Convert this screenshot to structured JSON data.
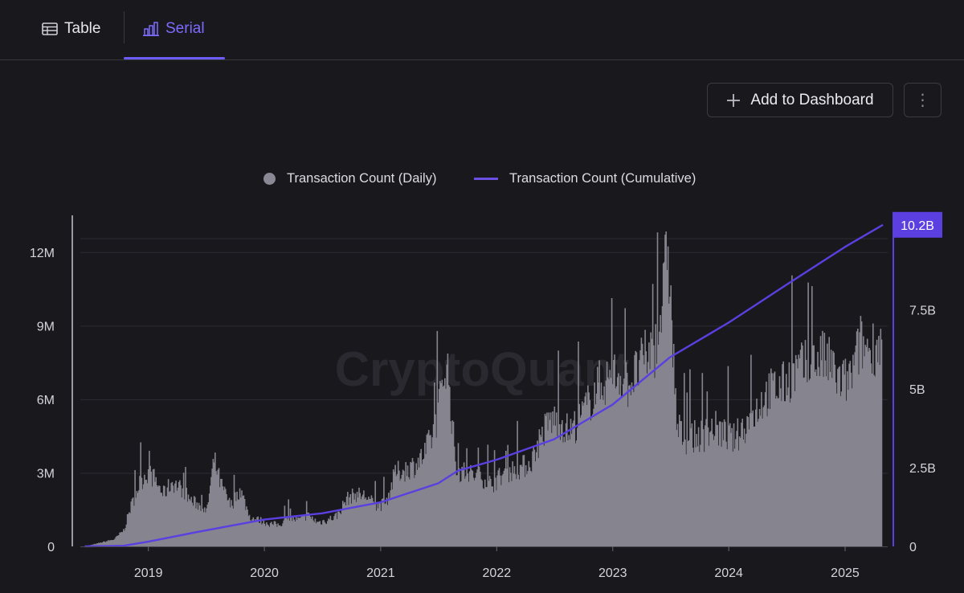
{
  "tabs": [
    {
      "label": "Table",
      "icon": "table-icon",
      "active": false
    },
    {
      "label": "Serial",
      "icon": "bar-chart-icon",
      "active": true
    }
  ],
  "toolbar": {
    "add_dashboard_label": "Add to Dashboard",
    "more_icon": "vertical-dots-icon",
    "more_glyph": "⋮"
  },
  "watermark": "CryptoQuant",
  "colors": {
    "background": "#19181c",
    "accent": "#6e5cf6",
    "daily_bars": "#86858f",
    "cumulative_line": "#5b3fe0",
    "axis_highlight": "#5b3fe0"
  },
  "chart_data": {
    "type": "bar",
    "x_type": "time",
    "x_ticks": [
      "2019",
      "2020",
      "2021",
      "2022",
      "2023",
      "2024",
      "2025"
    ],
    "y_left": {
      "ticks": [
        "0",
        "3M",
        "6M",
        "9M",
        "12M"
      ],
      "range": [
        0,
        13500000
      ]
    },
    "y_right": {
      "ticks": [
        "0",
        "2.5B",
        "5B",
        "7.5B"
      ],
      "range": [
        0,
        10500000000
      ]
    },
    "last_value_label": "10.2B",
    "legend_position": "top-center",
    "grid": true,
    "series": [
      {
        "name": "Transaction Count (Daily)",
        "type": "bar",
        "axis": "left",
        "points": [
          [
            "2018-06-15",
            0
          ],
          [
            "2018-08-01",
            150000
          ],
          [
            "2018-09-15",
            300000
          ],
          [
            "2018-10-15",
            700000
          ],
          [
            "2018-11-01",
            1500000
          ],
          [
            "2018-12-01",
            2600000
          ],
          [
            "2018-12-25",
            3100000
          ],
          [
            "2019-01-15",
            2900000
          ],
          [
            "2019-02-15",
            2200000
          ],
          [
            "2019-03-15",
            2700000
          ],
          [
            "2019-04-15",
            2400000
          ],
          [
            "2019-05-15",
            1900000
          ],
          [
            "2019-06-15",
            1700000
          ],
          [
            "2019-07-01",
            1400000
          ],
          [
            "2019-07-25",
            3600000
          ],
          [
            "2019-08-15",
            2600000
          ],
          [
            "2019-09-15",
            1700000
          ],
          [
            "2019-10-15",
            2400000
          ],
          [
            "2019-11-15",
            1200000
          ],
          [
            "2019-12-15",
            1100000
          ],
          [
            "2020-01-15",
            950000
          ],
          [
            "2020-02-15",
            900000
          ],
          [
            "2020-03-15",
            1200000
          ],
          [
            "2020-04-15",
            1100000
          ],
          [
            "2020-05-15",
            1300000
          ],
          [
            "2020-06-15",
            1000000
          ],
          [
            "2020-07-15",
            1100000
          ],
          [
            "2020-08-15",
            1300000
          ],
          [
            "2020-09-15",
            2000000
          ],
          [
            "2020-10-15",
            2200000
          ],
          [
            "2020-11-15",
            2100000
          ],
          [
            "2020-12-15",
            1700000
          ],
          [
            "2021-01-15",
            1800000
          ],
          [
            "2021-02-15",
            3100000
          ],
          [
            "2021-03-15",
            3200000
          ],
          [
            "2021-04-15",
            3400000
          ],
          [
            "2021-05-15",
            3800000
          ],
          [
            "2021-06-15",
            4800000
          ],
          [
            "2021-07-10",
            6500000
          ],
          [
            "2021-07-25",
            8000000
          ],
          [
            "2021-08-10",
            5500000
          ],
          [
            "2021-08-25",
            3200000
          ],
          [
            "2021-10-15",
            3000000
          ],
          [
            "2021-11-15",
            2900000
          ],
          [
            "2021-12-15",
            2600000
          ],
          [
            "2022-01-15",
            3000000
          ],
          [
            "2022-02-15",
            3200000
          ],
          [
            "2022-03-15",
            3300000
          ],
          [
            "2022-04-15",
            3500000
          ],
          [
            "2022-05-15",
            4500000
          ],
          [
            "2022-06-15",
            5300000
          ],
          [
            "2022-07-15",
            5300000
          ],
          [
            "2022-08-15",
            4800000
          ],
          [
            "2022-09-15",
            5300000
          ],
          [
            "2022-10-15",
            6000000
          ],
          [
            "2022-11-15",
            6800000
          ],
          [
            "2022-12-15",
            7000000
          ],
          [
            "2023-01-15",
            7300000
          ],
          [
            "2023-02-15",
            6800000
          ],
          [
            "2023-03-15",
            7300000
          ],
          [
            "2023-04-15",
            8000000
          ],
          [
            "2023-05-15",
            8400000
          ],
          [
            "2023-06-10",
            10800000
          ],
          [
            "2023-06-20",
            13000000
          ],
          [
            "2023-07-05",
            9000000
          ],
          [
            "2023-07-20",
            5000000
          ],
          [
            "2023-08-15",
            4500000
          ],
          [
            "2023-09-15",
            4600000
          ],
          [
            "2023-10-15",
            4700000
          ],
          [
            "2023-11-15",
            5000000
          ],
          [
            "2023-12-15",
            4700000
          ],
          [
            "2024-01-15",
            4500000
          ],
          [
            "2024-02-15",
            5000000
          ],
          [
            "2024-03-15",
            5500000
          ],
          [
            "2024-04-15",
            6200000
          ],
          [
            "2024-05-15",
            6600000
          ],
          [
            "2024-06-15",
            6700000
          ],
          [
            "2024-07-15",
            7200000
          ],
          [
            "2024-08-15",
            7500000
          ],
          [
            "2024-09-15",
            7600000
          ],
          [
            "2024-10-15",
            8000000
          ],
          [
            "2024-11-15",
            7600000
          ],
          [
            "2024-12-15",
            6900000
          ],
          [
            "2025-01-15",
            7000000
          ],
          [
            "2025-02-15",
            8500000
          ],
          [
            "2025-03-15",
            8300000
          ],
          [
            "2025-04-25",
            8600000
          ]
        ]
      },
      {
        "name": "Transaction Count (Cumulative)",
        "type": "line",
        "axis": "right",
        "points": [
          [
            "2018-06-15",
            0
          ],
          [
            "2018-10-15",
            20000000
          ],
          [
            "2019-01-01",
            150000000
          ],
          [
            "2019-06-01",
            450000000
          ],
          [
            "2020-01-01",
            850000000
          ],
          [
            "2020-07-01",
            1050000000
          ],
          [
            "2021-01-01",
            1400000000
          ],
          [
            "2021-07-01",
            2000000000
          ],
          [
            "2021-09-01",
            2400000000
          ],
          [
            "2022-01-01",
            2750000000
          ],
          [
            "2022-07-01",
            3400000000
          ],
          [
            "2023-01-01",
            4500000000
          ],
          [
            "2023-06-30",
            6000000000
          ],
          [
            "2024-01-01",
            7100000000
          ],
          [
            "2024-07-01",
            8300000000
          ],
          [
            "2025-01-01",
            9500000000
          ],
          [
            "2025-04-30",
            10200000000
          ]
        ]
      }
    ]
  }
}
